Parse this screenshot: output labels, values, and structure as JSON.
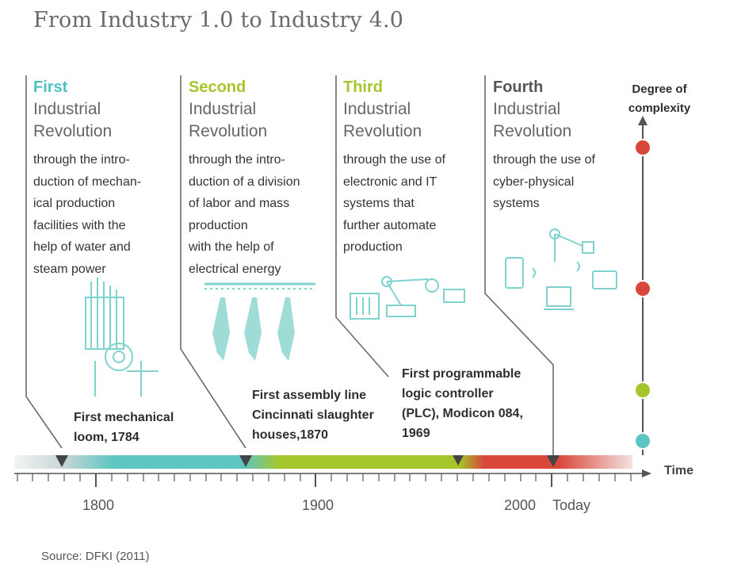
{
  "title": "From Industry 1.0 to Industry 4.0",
  "revolutions": [
    {
      "ordinal": "First",
      "label_line1": "Industrial",
      "label_line2": "Revolution",
      "description": "through the intro-\nduction of mechan-\nical production\nfacilities with the\nhelp of water and\nsteam power",
      "color": "#4fc3c3"
    },
    {
      "ordinal": "Second",
      "label_line1": "Industrial",
      "label_line2": "Revolution",
      "description": "through the intro-\nduction of a division\nof labor and mass\nproduction\nwith the help of\nelectrical energy",
      "color": "#a5c62a"
    },
    {
      "ordinal": "Third",
      "label_line1": "Industrial",
      "label_line2": "Revolution",
      "description": "through the use of\nelectronic and IT\nsystems that\nfurther automate\nproduction",
      "color": "#a5c62a"
    },
    {
      "ordinal": "Fourth",
      "label_line1": "Industrial",
      "label_line2": "Revolution",
      "description": "through the use of\ncyber-physical\nsystems",
      "color": "#555555"
    }
  ],
  "events": [
    {
      "text": "First mechanical\nloom, 1784"
    },
    {
      "text": "First assembly line\nCincinnati slaughter\nhouses,1870"
    },
    {
      "text": "First programmable\nlogic controller\n(PLC), Modicon 084,\n1969"
    }
  ],
  "axis": {
    "time_label": "Time",
    "tick_labels": [
      "1800",
      "1900",
      "2000",
      "Today"
    ]
  },
  "complexity": {
    "label": "Degree of\ncomplexity",
    "levels": [
      {
        "color": "#d9463a"
      },
      {
        "color": "#d9463a"
      },
      {
        "color": "#a5c62a"
      },
      {
        "color": "#4fc3c3"
      }
    ]
  },
  "source": "Source: DFKI (2011)"
}
